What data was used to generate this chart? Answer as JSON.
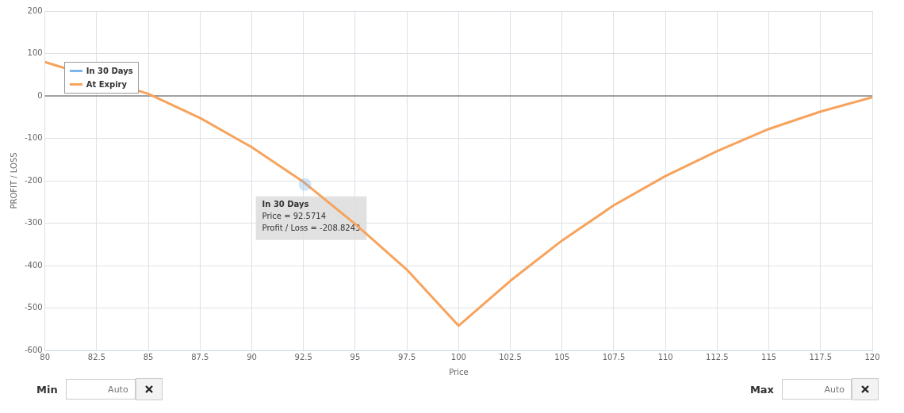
{
  "chart_data": {
    "type": "line",
    "xlabel": "Price",
    "ylabel": "PROFIT / LOSS",
    "xlim": [
      80,
      120
    ],
    "xticks": [
      80,
      82.5,
      85,
      87.5,
      90,
      92.5,
      95,
      97.5,
      100,
      102.5,
      105,
      107.5,
      110,
      112.5,
      115,
      117.5,
      120
    ],
    "ylim": [
      -600,
      200
    ],
    "yticks": [
      -600,
      -500,
      -400,
      -300,
      -200,
      -100,
      0,
      100,
      200
    ],
    "grid": true,
    "legend": "top left",
    "series": [
      {
        "name": "In 30 Days",
        "color": "#7cb5ec",
        "marker": "circle",
        "x": [
          92.57
        ],
        "values": [
          -209
        ]
      },
      {
        "name": "At Expiry",
        "color": "#f7a35c",
        "x": [
          80,
          85,
          87.5,
          90,
          92.5,
          95,
          97.5,
          100,
          102.5,
          105,
          107.5,
          110,
          112.5,
          115,
          117.5,
          120
        ],
        "values": [
          80,
          5,
          -52,
          -121,
          -203,
          -302,
          -410,
          -542,
          -436,
          -341,
          -258,
          -189,
          -130,
          -78,
          -37,
          -3
        ]
      }
    ],
    "ref_lines": [
      {
        "axis": "y",
        "value": 0,
        "color": "#a0a0a0"
      }
    ],
    "annotations": [
      {
        "text": "In 30 Days\nPrice = 92.5714\nProfit / Loss = -208.8243",
        "x": 92.5714,
        "y": -208.8243
      },
      "Min",
      "Auto",
      "Max",
      "Auto"
    ]
  }
}
